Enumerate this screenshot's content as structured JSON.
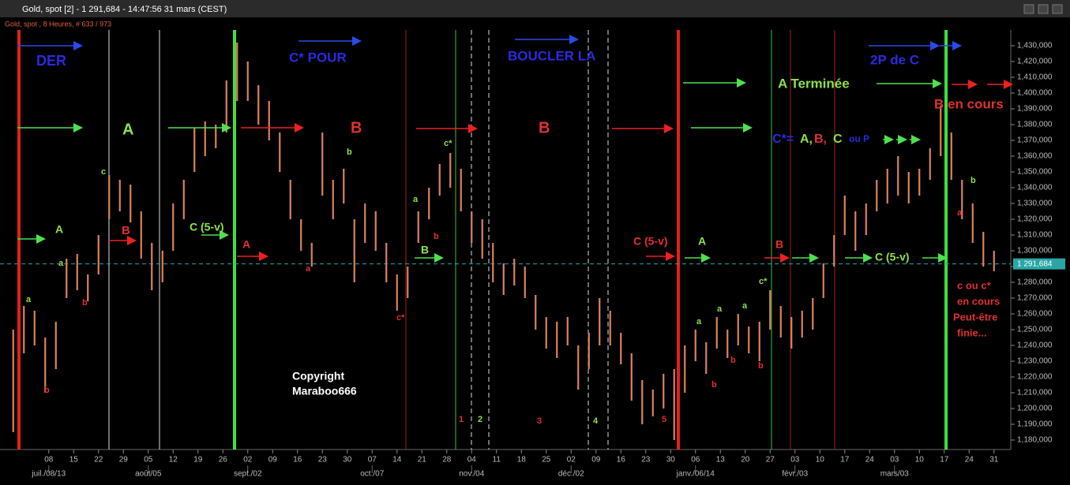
{
  "header": {
    "window_title": "Gold, spot [2] - 1 291,684 - 14:47:56  31 mars (CEST)",
    "subtitle": "Gold, spot , 8 Heures, # 633 / 973"
  },
  "chart_data": {
    "type": "ohlc",
    "color": "#d9825e",
    "x": [
      -10,
      -7,
      -4,
      -1,
      2,
      5,
      8,
      11,
      14,
      17,
      20,
      23,
      26,
      29,
      32,
      35,
      38,
      41,
      44,
      47,
      50,
      53,
      56,
      59,
      62,
      65,
      68,
      71,
      74,
      77,
      80,
      83,
      86,
      89,
      92,
      95,
      98,
      101,
      104,
      107,
      110,
      113,
      116,
      119,
      122,
      125,
      128,
      131,
      134,
      137,
      140,
      143,
      146,
      149,
      152,
      155,
      158,
      161,
      164,
      167,
      170,
      173,
      176,
      179,
      182,
      185,
      188,
      191,
      194,
      197,
      200,
      203,
      206,
      209,
      212,
      215,
      218,
      221,
      224,
      227,
      230,
      233,
      236,
      239,
      242,
      245,
      248,
      251,
      254,
      257,
      260,
      263,
      266
    ],
    "high": [
      1250,
      1265,
      1262,
      1245,
      1255,
      1295,
      1298,
      1285,
      1310,
      1348,
      1345,
      1342,
      1325,
      1305,
      1300,
      1330,
      1345,
      1378,
      1382,
      1380,
      1408,
      1432,
      1420,
      1405,
      1395,
      1375,
      1345,
      1320,
      1305,
      1375,
      1345,
      1352,
      1320,
      1330,
      1325,
      1305,
      1285,
      1290,
      1325,
      1340,
      1355,
      1362,
      1352,
      1325,
      1320,
      1305,
      1292,
      1295,
      1290,
      1272,
      1258,
      1255,
      1258,
      1240,
      1248,
      1270,
      1262,
      1248,
      1235,
      1218,
      1212,
      1222,
      1225,
      1240,
      1250,
      1242,
      1258,
      1250,
      1260,
      1252,
      1255,
      1275,
      1265,
      1258,
      1262,
      1270,
      1292,
      1310,
      1335,
      1325,
      1330,
      1345,
      1352,
      1360,
      1350,
      1352,
      1365,
      1392,
      1375,
      1345,
      1330,
      1312,
      1300
    ],
    "low": [
      1185,
      1235,
      1240,
      1210,
      1225,
      1270,
      1275,
      1268,
      1285,
      1320,
      1325,
      1318,
      1295,
      1275,
      1280,
      1300,
      1320,
      1350,
      1360,
      1365,
      1375,
      1395,
      1395,
      1380,
      1370,
      1350,
      1320,
      1300,
      1290,
      1335,
      1320,
      1330,
      1280,
      1305,
      1300,
      1280,
      1262,
      1270,
      1305,
      1320,
      1335,
      1340,
      1325,
      1305,
      1295,
      1280,
      1272,
      1278,
      1270,
      1250,
      1238,
      1232,
      1240,
      1212,
      1225,
      1240,
      1240,
      1228,
      1205,
      1190,
      1195,
      1200,
      1180,
      1210,
      1230,
      1222,
      1238,
      1232,
      1240,
      1235,
      1230,
      1250,
      1245,
      1238,
      1245,
      1250,
      1270,
      1290,
      1310,
      1300,
      1310,
      1325,
      1330,
      1335,
      1330,
      1335,
      1345,
      1360,
      1345,
      1320,
      1305,
      1290,
      1287
    ],
    "xlim": [
      -11.5,
      270.5
    ],
    "ylim": [
      1174,
      1444
    ],
    "yticks": [
      {
        "value": 1180,
        "label": "1,180,000"
      },
      {
        "value": 1190,
        "label": "1,190,000"
      },
      {
        "value": 1200,
        "label": "1,200,000"
      },
      {
        "value": 1210,
        "label": "1,210,000"
      },
      {
        "value": 1220,
        "label": "1,220,000"
      },
      {
        "value": 1230,
        "label": "1,230,000"
      },
      {
        "value": 1240,
        "label": "1,240,000"
      },
      {
        "value": 1250,
        "label": "1,250,000"
      },
      {
        "value": 1260,
        "label": "1,260,000"
      },
      {
        "value": 1270,
        "label": "1,270,000"
      },
      {
        "value": 1280,
        "label": "1,280,000"
      },
      {
        "value": 1290,
        "label": "1,290,000"
      },
      {
        "value": 1300,
        "label": "1,300,000"
      },
      {
        "value": 1310,
        "label": "1,310,000"
      },
      {
        "value": 1320,
        "label": "1,320,000"
      },
      {
        "value": 1330,
        "label": "1,330,000"
      },
      {
        "value": 1340,
        "label": "1,340,000"
      },
      {
        "value": 1350,
        "label": "1,350,000"
      },
      {
        "value": 1360,
        "label": "1,360,000"
      },
      {
        "value": 1370,
        "label": "1,370,000"
      },
      {
        "value": 1380,
        "label": "1,380,000"
      },
      {
        "value": 1390,
        "label": "1,390,000"
      },
      {
        "value": 1400,
        "label": "1,400,000"
      },
      {
        "value": 1410,
        "label": "1,410,000"
      },
      {
        "value": 1420,
        "label": "1,420,000"
      },
      {
        "value": 1430,
        "label": "1,430,000"
      }
    ],
    "xticks": [
      {
        "value": 0,
        "label": "08"
      },
      {
        "value": 7,
        "label": "15"
      },
      {
        "value": 14,
        "label": "22"
      },
      {
        "value": 21,
        "label": "29"
      },
      {
        "value": 28,
        "label": "05"
      },
      {
        "value": 35,
        "label": "12"
      },
      {
        "value": 42,
        "label": "19"
      },
      {
        "value": 49,
        "label": "26"
      },
      {
        "value": 56,
        "label": "02"
      },
      {
        "value": 63,
        "label": "09"
      },
      {
        "value": 70,
        "label": "16"
      },
      {
        "value": 77,
        "label": "23"
      },
      {
        "value": 84,
        "label": "30"
      },
      {
        "value": 91,
        "label": "07"
      },
      {
        "value": 98,
        "label": "14"
      },
      {
        "value": 105,
        "label": "21"
      },
      {
        "value": 112,
        "label": "28"
      },
      {
        "value": 119,
        "label": "04"
      },
      {
        "value": 126,
        "label": "11"
      },
      {
        "value": 133,
        "label": "18"
      },
      {
        "value": 140,
        "label": "25"
      },
      {
        "value": 147,
        "label": "02"
      },
      {
        "value": 154,
        "label": "09"
      },
      {
        "value": 161,
        "label": "16"
      },
      {
        "value": 168,
        "label": "23"
      },
      {
        "value": 175,
        "label": "30"
      },
      {
        "value": 182,
        "label": "06"
      },
      {
        "value": 189,
        "label": "13"
      },
      {
        "value": 196,
        "label": "20"
      },
      {
        "value": 203,
        "label": "27"
      },
      {
        "value": 210,
        "label": "03"
      },
      {
        "value": 217,
        "label": "10"
      },
      {
        "value": 224,
        "label": "17"
      },
      {
        "value": 231,
        "label": "24"
      },
      {
        "value": 238,
        "label": "03"
      },
      {
        "value": 245,
        "label": "10"
      },
      {
        "value": 252,
        "label": "17"
      },
      {
        "value": 259,
        "label": "24"
      },
      {
        "value": 266,
        "label": "31"
      }
    ],
    "xticks_month": [
      {
        "value": 0,
        "label": "juil./08/13"
      },
      {
        "value": 28,
        "label": "août/05"
      },
      {
        "value": 56,
        "label": "sept./02"
      },
      {
        "value": 91,
        "label": "oct./07"
      },
      {
        "value": 119,
        "label": "nov./04"
      },
      {
        "value": 147,
        "label": "déc./02"
      },
      {
        "value": 182,
        "label": "janv./06/14"
      },
      {
        "value": 210,
        "label": "févr./03"
      },
      {
        "value": 238,
        "label": "mars/03"
      }
    ],
    "last_price": {
      "value": 1291.684,
      "label": "1 291,684",
      "color": "#2aa6a6"
    },
    "annotations": [
      {
        "text": "DER",
        "color": "#2a2ae0"
      },
      {
        "text": "C* POUR",
        "color": "#2a2ae0"
      },
      {
        "text": "BOUCLER LA",
        "color": "#2a2ae0"
      },
      {
        "text": "2P de C",
        "color": "#2a2ae0"
      },
      {
        "text": "A",
        "color": "#8ee04a"
      },
      {
        "text": "B",
        "color": "#e03030"
      },
      {
        "text": "B",
        "color": "#e03030"
      },
      {
        "text": "A Terminée",
        "color": "#8ee04a"
      },
      {
        "text": "B en cours",
        "color": "#e03030"
      },
      {
        "text": "C*=",
        "color": "#2a2ae0"
      },
      {
        "text": "A,",
        "color": "#8ee04a"
      },
      {
        "text": "B,",
        "color": "#e03030"
      },
      {
        "text": "C",
        "color": "#8ee04a"
      },
      {
        "text": "ou P",
        "color": "#2a2ae0"
      },
      {
        "text": "A",
        "color": "#8ee04a"
      },
      {
        "text": "B",
        "color": "#e03030"
      },
      {
        "text": "C (5-v)",
        "color": "#8ee04a"
      },
      {
        "text": "A",
        "color": "#e03030"
      },
      {
        "text": "B",
        "color": "#8ee04a"
      },
      {
        "text": "C (5-v)",
        "color": "#e03030"
      },
      {
        "text": "A",
        "color": "#8ee04a"
      },
      {
        "text": "B",
        "color": "#e03030"
      },
      {
        "text": "C (5-v)",
        "color": "#8ee04a"
      },
      {
        "text": "c ou c*",
        "color": "#e03030"
      },
      {
        "text": "en cours",
        "color": "#e03030"
      },
      {
        "text": "Peut-être",
        "color": "#e03030"
      },
      {
        "text": "finie...",
        "color": "#e03030"
      },
      {
        "text": "Copyright",
        "color": "#ffffff"
      },
      {
        "text": "Maraboo666",
        "color": "#ffffff"
      },
      {
        "text": "a",
        "color": "#8ee04a"
      },
      {
        "text": "b",
        "color": "#e03030"
      },
      {
        "text": "a",
        "color": "#8ee04a"
      },
      {
        "text": "b",
        "color": "#e03030"
      },
      {
        "text": "c",
        "color": "#8ee04a"
      },
      {
        "text": "b",
        "color": "#8ee04a"
      },
      {
        "text": "a",
        "color": "#e03030"
      },
      {
        "text": "a",
        "color": "#8ee04a"
      },
      {
        "text": "b",
        "color": "#e03030"
      },
      {
        "text": "c*",
        "color": "#e03030"
      },
      {
        "text": "c*",
        "color": "#8ee04a"
      },
      {
        "text": "1",
        "color": "#e03030"
      },
      {
        "text": "2",
        "color": "#8ee04a"
      },
      {
        "text": "3",
        "color": "#e03030"
      },
      {
        "text": "4",
        "color": "#8ee04a"
      },
      {
        "text": "5",
        "color": "#e03030"
      },
      {
        "text": "a",
        "color": "#8ee04a"
      },
      {
        "text": "b",
        "color": "#e03030"
      },
      {
        "text": "a",
        "color": "#8ee04a"
      },
      {
        "text": "b",
        "color": "#e03030"
      },
      {
        "text": "a",
        "color": "#8ee04a"
      },
      {
        "text": "b",
        "color": "#e03030"
      },
      {
        "text": "c*",
        "color": "#8ee04a"
      },
      {
        "text": "a",
        "color": "#e03030"
      },
      {
        "text": "b",
        "color": "#8ee04a"
      }
    ]
  }
}
